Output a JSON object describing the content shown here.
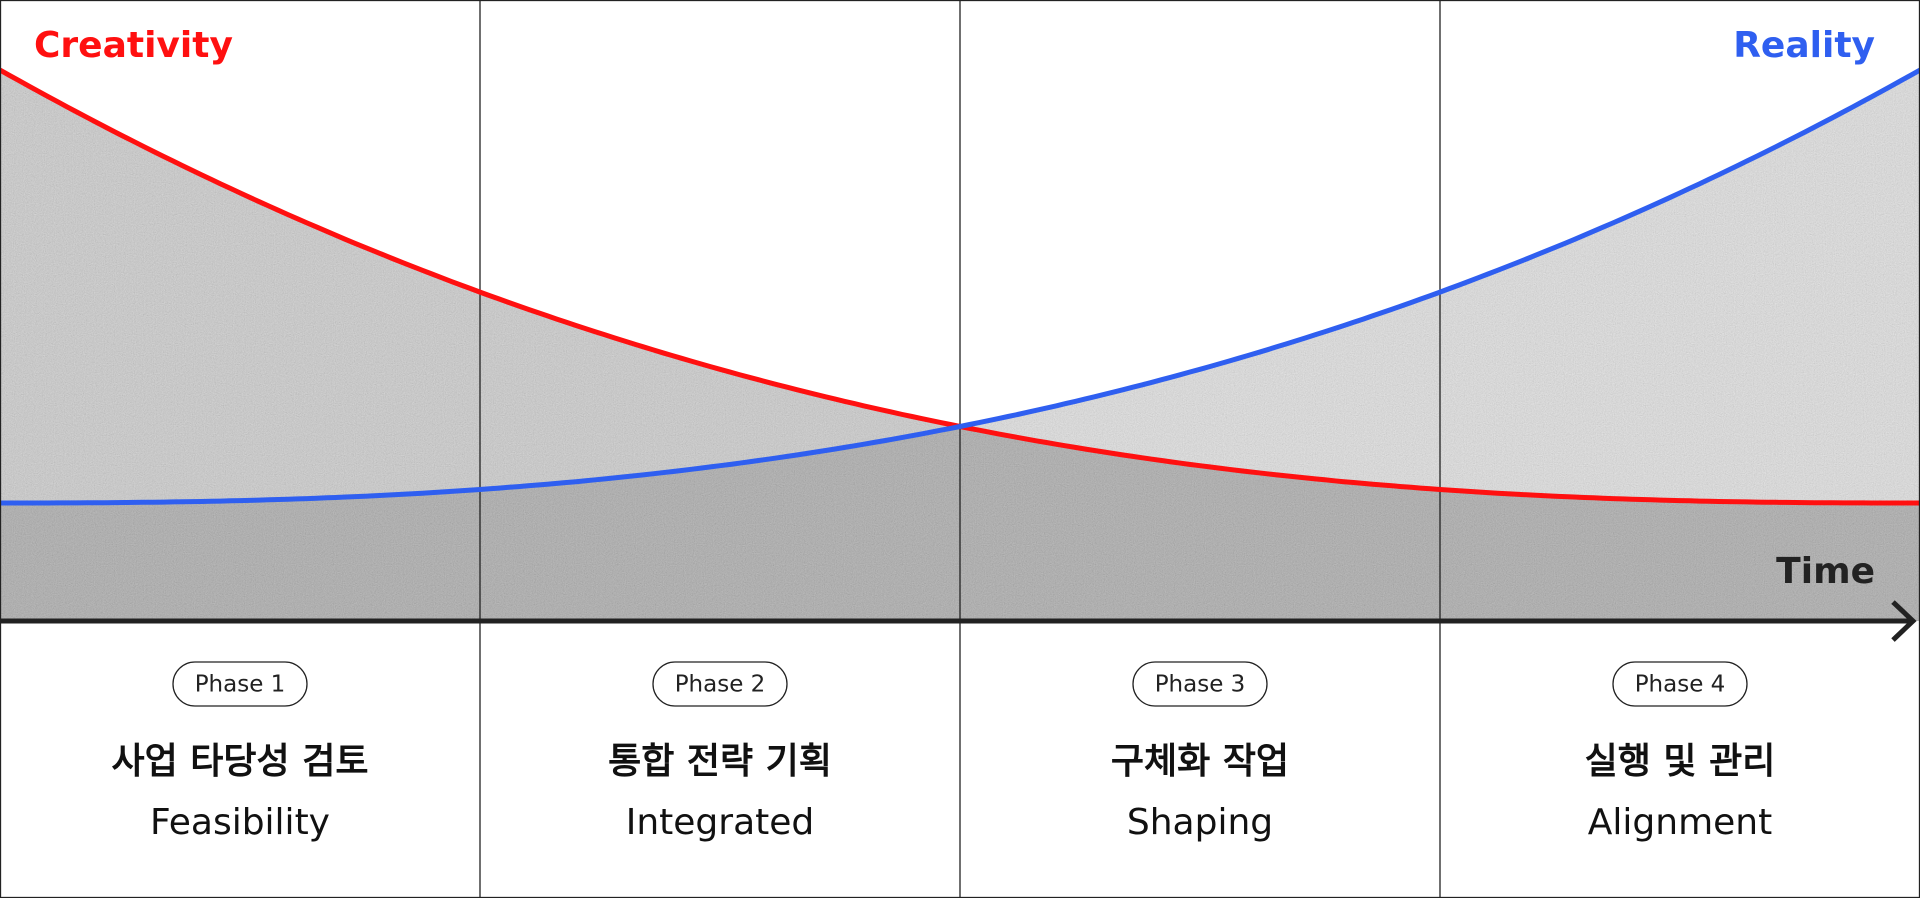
{
  "labels": {
    "creativity": "Creativity",
    "reality": "Reality",
    "time": "Time"
  },
  "phases": [
    {
      "badge": "Phase 1",
      "title": "사업 타당성 검토",
      "subtitle": "Feasibility"
    },
    {
      "badge": "Phase 2",
      "title": "통합 전략 기획",
      "subtitle": "Integrated"
    },
    {
      "badge": "Phase 3",
      "title": "구체화 작업",
      "subtitle": "Shaping"
    },
    {
      "badge": "Phase 4",
      "title": "실행 및 관리",
      "subtitle": "Alignment"
    }
  ]
}
